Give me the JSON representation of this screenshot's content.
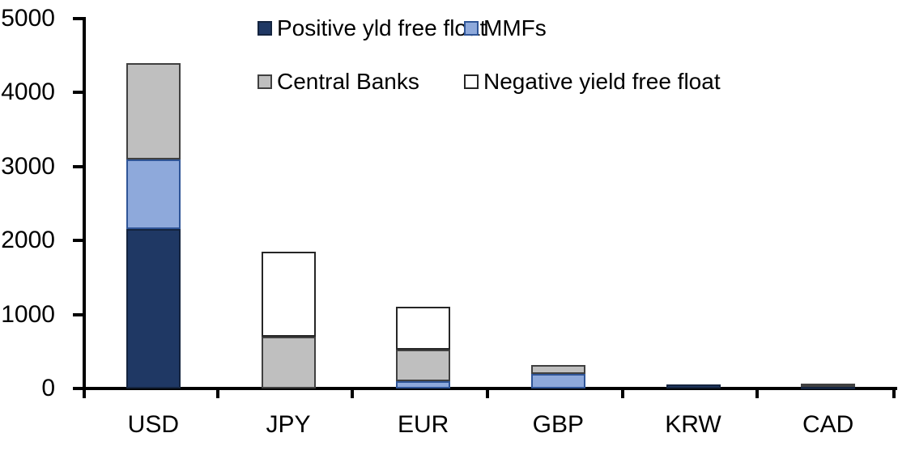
{
  "chart_data": {
    "type": "bar",
    "stacked": true,
    "title": "",
    "xlabel": "",
    "ylabel": "",
    "categories": [
      "USD",
      "JPY",
      "EUR",
      "GBP",
      "KRW",
      "CAD"
    ],
    "series": [
      {
        "name": "Positive yld free float",
        "color": "#1F3864",
        "border": "#14243F",
        "values": [
          2150,
          0,
          0,
          0,
          50,
          30
        ]
      },
      {
        "name": "MMFs",
        "color": "#8EA9DB",
        "border": "#2F5597",
        "values": [
          950,
          0,
          100,
          200,
          0,
          0
        ]
      },
      {
        "name": "Central Banks",
        "color": "#BFBFBF",
        "border": "#404040",
        "values": [
          1300,
          700,
          425,
          120,
          0,
          35
        ]
      },
      {
        "name": "Negative yield free float",
        "color": "#FFFFFF",
        "border": "#262626",
        "values": [
          0,
          1150,
          575,
          0,
          0,
          0
        ]
      }
    ],
    "ylim": [
      0,
      5000
    ],
    "yticks": [
      0,
      1000,
      2000,
      3000,
      4000,
      5000
    ],
    "legend_position": "top",
    "grid": false,
    "axis_color": "#000000"
  }
}
